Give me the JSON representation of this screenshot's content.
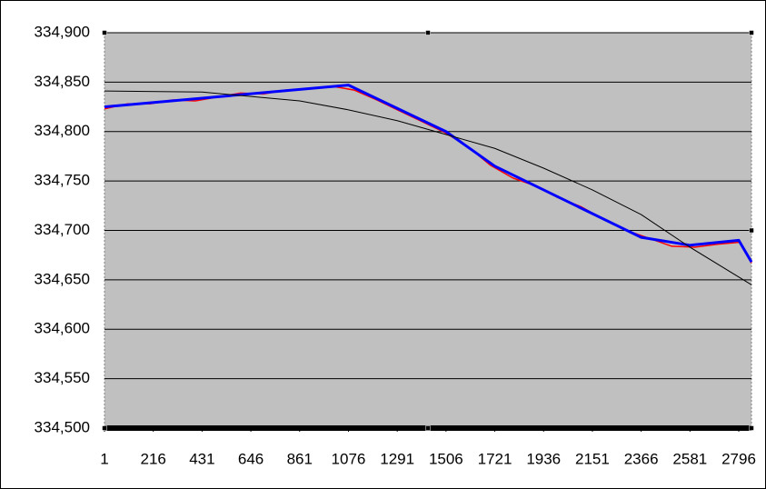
{
  "chart_data": {
    "type": "line",
    "xlim": [
      1,
      2852
    ],
    "xticks": [
      1,
      216,
      431,
      646,
      861,
      1076,
      1291,
      1506,
      1721,
      1936,
      2151,
      2366,
      2581,
      2796
    ],
    "ylim": [
      334500,
      334900
    ],
    "yticks": [
      {
        "value": 334500,
        "label": "334,500"
      },
      {
        "value": 334550,
        "label": "334,550"
      },
      {
        "value": 334600,
        "label": "334,600"
      },
      {
        "value": 334650,
        "label": "334,650"
      },
      {
        "value": 334700,
        "label": "334,700"
      },
      {
        "value": 334750,
        "label": "334,750"
      },
      {
        "value": 334800,
        "label": "334,800"
      },
      {
        "value": 334850,
        "label": "334,850"
      },
      {
        "value": 334900,
        "label": "334,900"
      }
    ],
    "grid": true,
    "background": "#c0c0c0",
    "series": [
      {
        "color": "#ff0000",
        "width": 1.5,
        "x": [
          1,
          101,
          201,
          301,
          401,
          501,
          601,
          701,
          801,
          901,
          1001,
          1101,
          1201,
          1301,
          1401,
          1501,
          1601,
          1701,
          1801,
          1901,
          2001,
          2101,
          2201,
          2301,
          2401,
          2501,
          2601,
          2701,
          2801,
          2852
        ],
        "values": [
          334823,
          334828,
          334828,
          334832,
          334831,
          334835,
          334839,
          334838,
          334842,
          334843,
          334846,
          334842,
          334832,
          334821,
          334810,
          334799,
          334785,
          334766,
          334753,
          334745,
          334733,
          334724,
          334711,
          334700,
          334692,
          334684,
          334683,
          334686,
          334688,
          334667
        ]
      },
      {
        "color": "#0000ff",
        "width": 3,
        "x": [
          1,
          1076,
          1506,
          1721,
          2366,
          2581,
          2796,
          2852
        ],
        "values": [
          334825,
          334847,
          334800,
          334765,
          334693,
          334685,
          334690,
          334668
        ]
      },
      {
        "color": "#000000",
        "width": 1,
        "x": [
          1,
          431,
          861,
          1076,
          1291,
          1506,
          1721,
          1936,
          2151,
          2366,
          2581,
          2852
        ],
        "values": [
          334841,
          334840,
          334831,
          334822,
          334811,
          334797,
          334783,
          334763,
          334741,
          334716,
          334683,
          334645
        ]
      }
    ]
  }
}
